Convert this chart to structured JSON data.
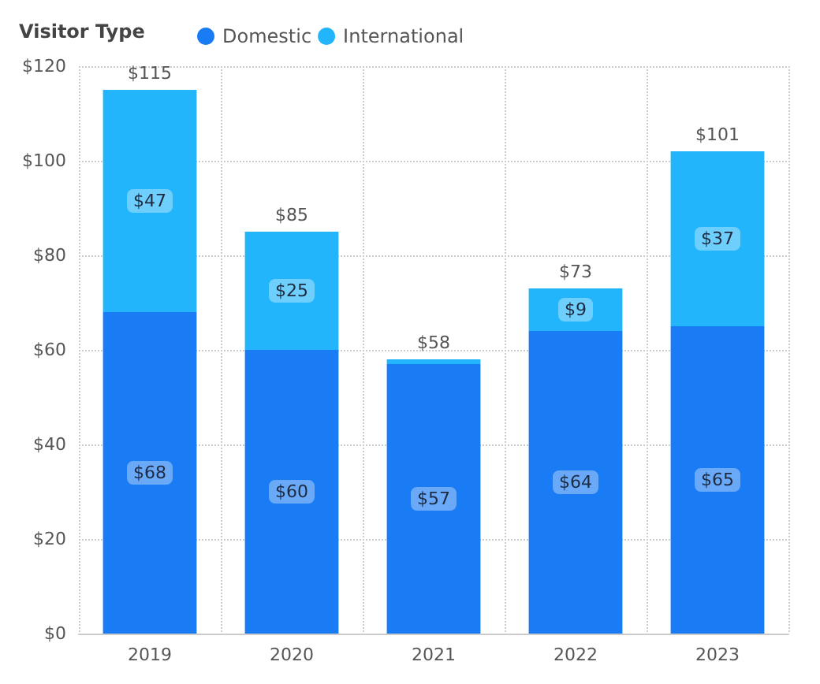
{
  "chart_data": {
    "type": "bar",
    "stacked": true,
    "legend_title": "Visitor Type",
    "categories": [
      "2019",
      "2020",
      "2021",
      "2022",
      "2023"
    ],
    "series": [
      {
        "name": "Domestic",
        "color": "#1a7cf5",
        "values": [
          68,
          60,
          57,
          64,
          65
        ],
        "value_labels": [
          "$68",
          "$60",
          "$57",
          "$64",
          "$65"
        ]
      },
      {
        "name": "International",
        "color": "#22b5fb",
        "values": [
          47,
          25,
          1,
          9,
          37
        ],
        "value_labels": [
          "$47",
          "$25",
          null,
          "$9",
          "$37"
        ]
      }
    ],
    "totals": [
      "$115",
      "$85",
      "$58",
      "$73",
      "$101"
    ],
    "ylim": [
      0,
      120
    ],
    "yticks": [
      {
        "value": 0,
        "label": "$0"
      },
      {
        "value": 20,
        "label": "$20"
      },
      {
        "value": 40,
        "label": "$40"
      },
      {
        "value": 60,
        "label": "$60"
      },
      {
        "value": 80,
        "label": "$80"
      },
      {
        "value": 100,
        "label": "$100"
      },
      {
        "value": 120,
        "label": "$120"
      }
    ],
    "grid": true,
    "legend": "top left"
  }
}
